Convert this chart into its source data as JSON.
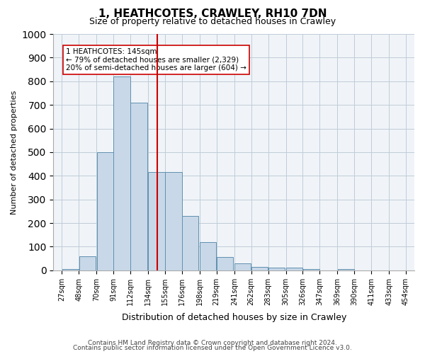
{
  "title": "1, HEATHCOTES, CRAWLEY, RH10 7DN",
  "subtitle": "Size of property relative to detached houses in Crawley",
  "xlabel": "Distribution of detached houses by size in Crawley",
  "ylabel": "Number of detached properties",
  "bins": [
    27,
    48,
    70,
    91,
    112,
    134,
    155,
    176,
    198,
    219,
    241,
    262,
    283,
    305,
    326,
    347,
    369,
    390,
    411,
    433,
    454
  ],
  "bin_labels": [
    "27sqm",
    "48sqm",
    "70sqm",
    "91sqm",
    "112sqm",
    "134sqm",
    "155sqm",
    "176sqm",
    "198sqm",
    "219sqm",
    "241sqm",
    "262sqm",
    "283sqm",
    "305sqm",
    "326sqm",
    "347sqm",
    "369sqm",
    "390sqm",
    "411sqm",
    "433sqm",
    "454sqm"
  ],
  "values": [
    5,
    60,
    500,
    820,
    710,
    415,
    415,
    230,
    120,
    55,
    30,
    15,
    10,
    10,
    5,
    0,
    5,
    0,
    0,
    0
  ],
  "bar_color": "#c8d8e8",
  "bar_edge_color": "#6090b0",
  "vline_x": 145,
  "vline_color": "#cc0000",
  "annotation_text": "1 HEATHCOTES: 145sqm\n← 79% of detached houses are smaller (2,329)\n20% of semi-detached houses are larger (604) →",
  "annotation_box_color": "#ffffff",
  "annotation_box_edge": "#cc0000",
  "ylim": [
    0,
    1000
  ],
  "yticks": [
    0,
    100,
    200,
    300,
    400,
    500,
    600,
    700,
    800,
    900,
    1000
  ],
  "grid_color": "#c0ccd8",
  "footer1": "Contains HM Land Registry data © Crown copyright and database right 2024.",
  "footer2": "Contains public sector information licensed under the Open Government Licence v3.0.",
  "bg_color": "#f0f4f8"
}
